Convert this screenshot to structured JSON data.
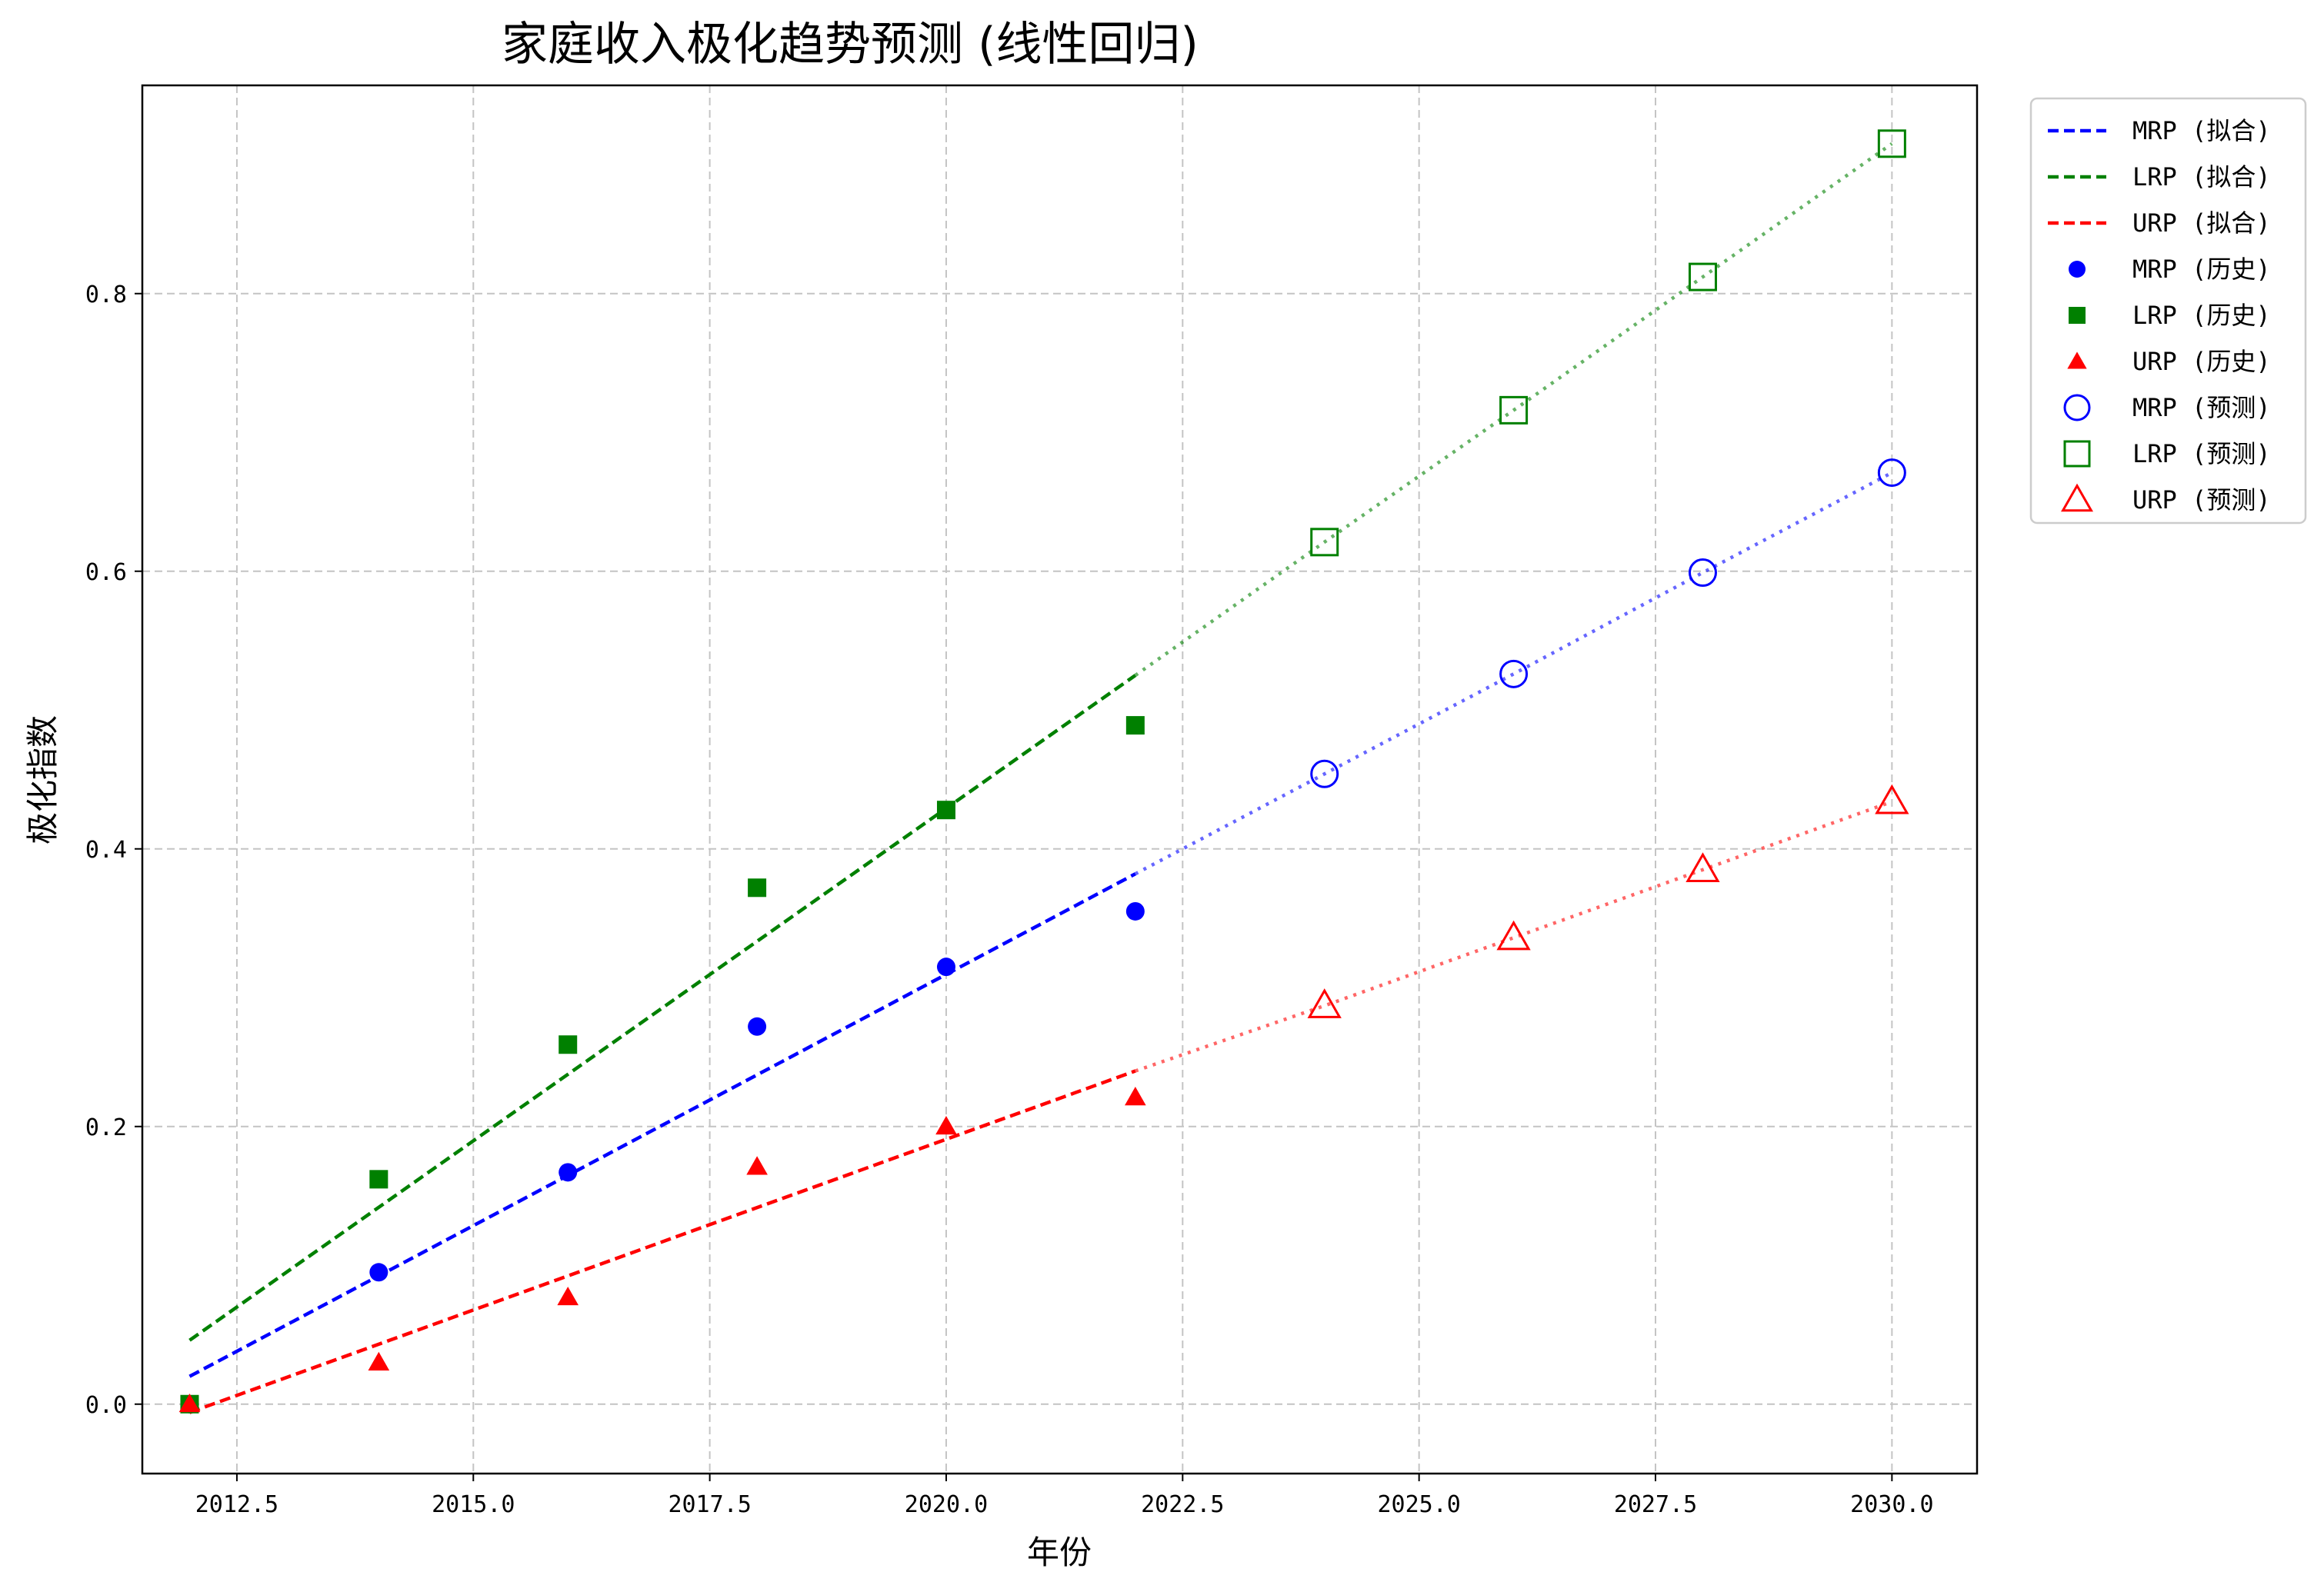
{
  "chart_data": {
    "type": "scatter",
    "title": "家庭收入极化趋势预测 (线性回归)",
    "xlabel": "年份",
    "ylabel": "极化指数",
    "xlim": [
      2011.5,
      2030.9
    ],
    "ylim": [
      -0.05,
      0.95
    ],
    "x_ticks": [
      2012.5,
      2015.0,
      2017.5,
      2020.0,
      2022.5,
      2025.0,
      2027.5,
      2030.0
    ],
    "x_tick_labels": [
      "2012.5",
      "2015.0",
      "2017.5",
      "2020.0",
      "2022.5",
      "2025.0",
      "2027.5",
      "2030.0"
    ],
    "y_ticks": [
      0.0,
      0.2,
      0.4,
      0.6,
      0.8
    ],
    "y_tick_labels": [
      "0.0",
      "0.2",
      "0.4",
      "0.6",
      "0.8"
    ],
    "grid": true,
    "legend_position": "outside-top-right",
    "series": [
      {
        "name": "MRP",
        "color": "#0000ff",
        "history_marker": "circle",
        "history_x": [
          2012,
          2014,
          2016,
          2018,
          2020,
          2022
        ],
        "history_y": [
          0.0,
          0.095,
          0.167,
          0.272,
          0.315,
          0.355
        ],
        "fit_x": [
          2012,
          2022
        ],
        "fit_y": [
          0.02,
          0.382
        ],
        "forecast_x": [
          2024,
          2026,
          2028,
          2030
        ],
        "forecast_y": [
          0.454,
          0.526,
          0.599,
          0.671
        ]
      },
      {
        "name": "LRP",
        "color": "#008000",
        "history_marker": "square",
        "history_x": [
          2012,
          2014,
          2016,
          2018,
          2020,
          2022
        ],
        "history_y": [
          0.0,
          0.162,
          0.259,
          0.372,
          0.428,
          0.489
        ],
        "fit_x": [
          2012,
          2022
        ],
        "fit_y": [
          0.046,
          0.525
        ],
        "forecast_x": [
          2024,
          2026,
          2028,
          2030
        ],
        "forecast_y": [
          0.621,
          0.716,
          0.812,
          0.908
        ]
      },
      {
        "name": "URP",
        "color": "#ff0000",
        "history_marker": "triangle",
        "history_x": [
          2012,
          2014,
          2016,
          2018,
          2020,
          2022
        ],
        "history_y": [
          0.0,
          0.03,
          0.077,
          0.171,
          0.2,
          0.221
        ],
        "fit_x": [
          2012,
          2022
        ],
        "fit_y": [
          -0.006,
          0.24
        ],
        "forecast_x": [
          2024,
          2026,
          2028,
          2030
        ],
        "forecast_y": [
          0.287,
          0.336,
          0.385,
          0.434
        ]
      }
    ],
    "legend": [
      {
        "label": "MRP (拟合)",
        "color": "#0000ff",
        "kind": "dashed"
      },
      {
        "label": "LRP (拟合)",
        "color": "#008000",
        "kind": "dashed"
      },
      {
        "label": "URP (拟合)",
        "color": "#ff0000",
        "kind": "dashed"
      },
      {
        "label": "MRP (历史)",
        "color": "#0000ff",
        "kind": "circle"
      },
      {
        "label": "LRP (历史)",
        "color": "#008000",
        "kind": "square"
      },
      {
        "label": "URP (历史)",
        "color": "#ff0000",
        "kind": "triangle"
      },
      {
        "label": "MRP (预测)",
        "color": "#0000ff",
        "kind": "circle-open"
      },
      {
        "label": "LRP (预测)",
        "color": "#008000",
        "kind": "square-open"
      },
      {
        "label": "URP (预测)",
        "color": "#ff0000",
        "kind": "triangle-open"
      }
    ]
  }
}
